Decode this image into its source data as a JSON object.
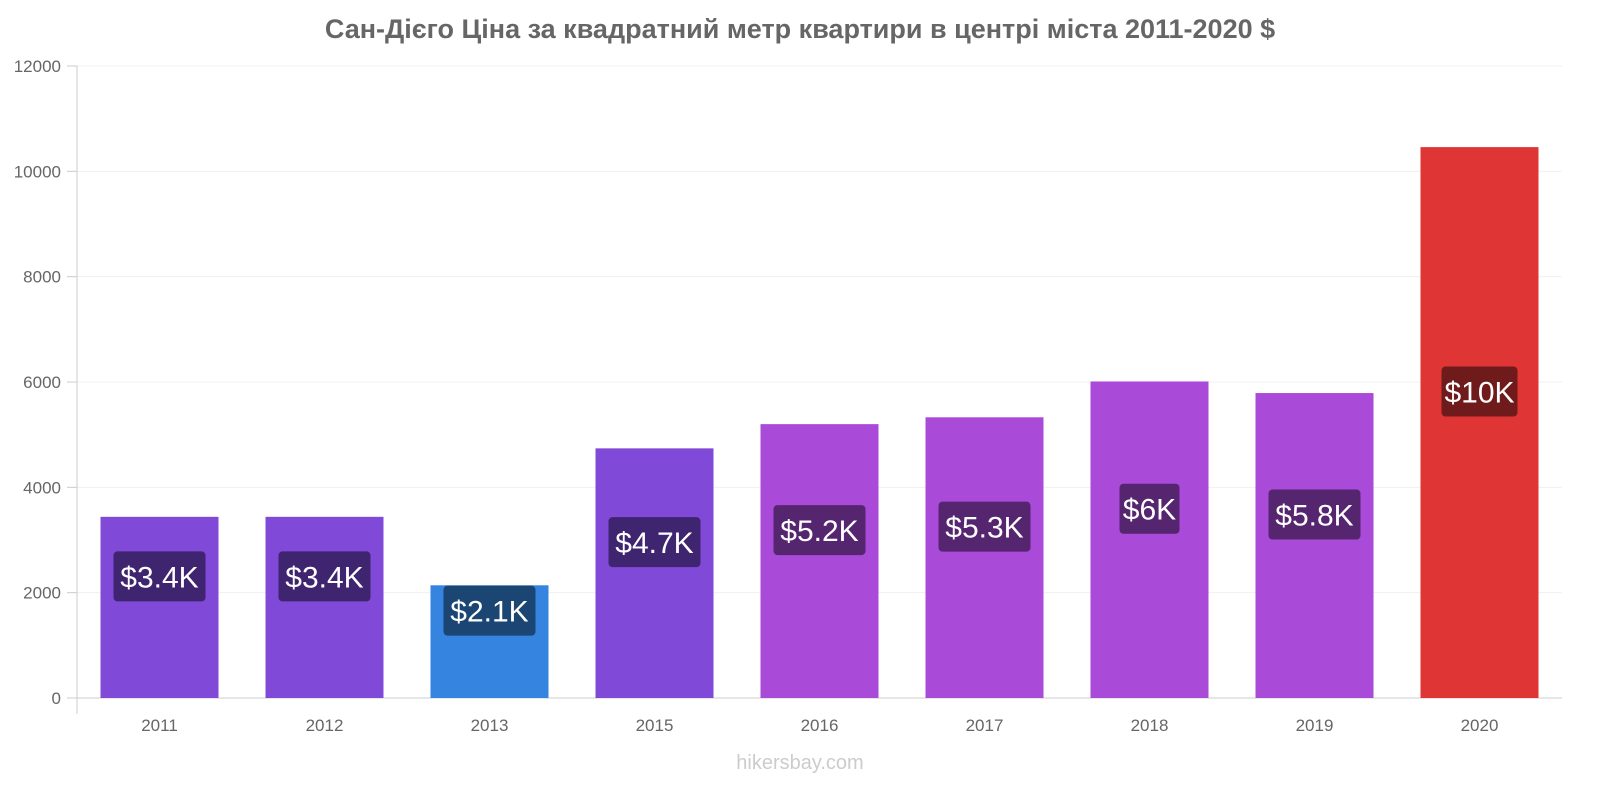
{
  "chart_data": {
    "type": "bar",
    "title": "Сан-Дієго Ціна за квадратний метр квартири в центрі міста 2011-2020 $",
    "xlabel": "",
    "ylabel": "",
    "ylim": [
      0,
      12000
    ],
    "yticks": [
      0,
      2000,
      4000,
      6000,
      8000,
      10000,
      12000
    ],
    "grid": true,
    "categories": [
      "2011",
      "2012",
      "2013",
      "2015",
      "2016",
      "2017",
      "2018",
      "2019",
      "2020"
    ],
    "values": [
      3440,
      3440,
      2140,
      4740,
      5200,
      5330,
      6010,
      5790,
      10460
    ],
    "data_labels": [
      "$3.4K",
      "$3.4K",
      "$2.1K",
      "$4.7K",
      "$5.2K",
      "$5.3K",
      "$6K",
      "$5.8K",
      "$10K"
    ],
    "colors": [
      "#8049d8",
      "#8049d8",
      "#3584e0",
      "#8049d8",
      "#a94ad8",
      "#a94ad8",
      "#a94ad8",
      "#a94ad8",
      "#e03535"
    ],
    "label_bg": [
      "#3f2470",
      "#3f2470",
      "#1b4572",
      "#3f2470",
      "#55256f",
      "#55256f",
      "#55256f",
      "#55256f",
      "#701b1b"
    ]
  },
  "source": "hikersbay.com"
}
